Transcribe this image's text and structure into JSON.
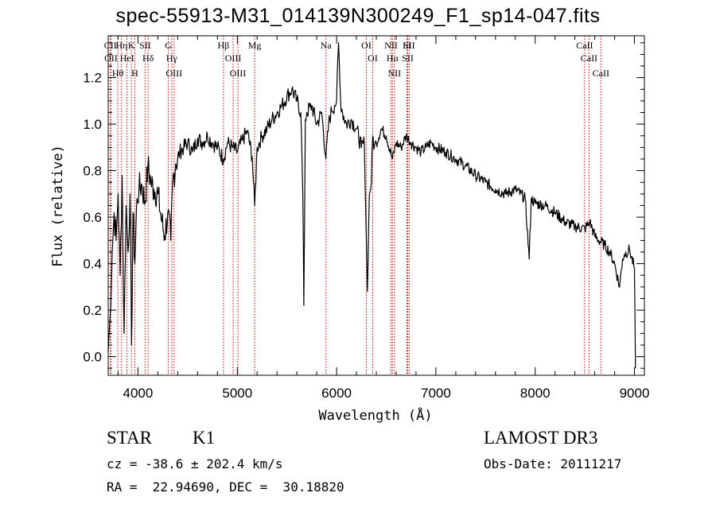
{
  "title": "spec-55913-M31_014139N300249_F1_sp14-047.fits",
  "info": {
    "class": "STAR",
    "subclass": "K1",
    "survey": "LAMOST DR3",
    "cz": "cz = -38.6 ± 202.4 km/s",
    "obs_date": "Obs-Date: 20111217",
    "coords": "RA =  22.94690, DEC =  30.18820"
  },
  "colors": {
    "spectrum": "#000000",
    "lines": "#c00000",
    "axes": "#000000"
  },
  "chart_data": {
    "type": "line",
    "xlabel": "Wavelength (Å)",
    "ylabel": "Flux (relative)",
    "xlim": [
      3700,
      9100
    ],
    "ylim": [
      -0.08,
      1.38
    ],
    "x_ticks": [
      4000,
      5000,
      6000,
      7000,
      8000,
      9000
    ],
    "x_tick_labels": [
      "4000",
      "5000",
      "6000",
      "7000",
      "8000",
      "9000"
    ],
    "y_ticks": [
      0.0,
      0.2,
      0.4,
      0.6,
      0.8,
      1.0,
      1.2
    ],
    "y_tick_labels": [
      "0.0",
      "0.2",
      "0.4",
      "0.6",
      "0.8",
      "1.0",
      "1.2"
    ],
    "spectrum": {
      "x": [
        3700,
        3720,
        3740,
        3760,
        3780,
        3800,
        3820,
        3840,
        3860,
        3880,
        3900,
        3920,
        3935,
        3950,
        3968,
        3990,
        4010,
        4040,
        4070,
        4100,
        4130,
        4160,
        4200,
        4240,
        4270,
        4300,
        4330,
        4350,
        4380,
        4420,
        4460,
        4500,
        4550,
        4600,
        4650,
        4700,
        4750,
        4800,
        4861,
        4900,
        4950,
        5000,
        5050,
        5100,
        5150,
        5175,
        5200,
        5250,
        5300,
        5350,
        5400,
        5450,
        5500,
        5550,
        5600,
        5640,
        5660,
        5670,
        5678,
        5685,
        5700,
        5750,
        5800,
        5850,
        5893,
        5920,
        5950,
        5980,
        6000,
        6020,
        6040,
        6060,
        6100,
        6150,
        6200,
        6250,
        6280,
        6300,
        6310,
        6330,
        6350,
        6364,
        6380,
        6400,
        6450,
        6500,
        6563,
        6600,
        6650,
        6700,
        6750,
        6800,
        6850,
        6900,
        6950,
        7000,
        7100,
        7200,
        7300,
        7400,
        7500,
        7600,
        7700,
        7800,
        7900,
        7940,
        7960,
        8000,
        8100,
        8200,
        8300,
        8400,
        8500,
        8550,
        8600,
        8640,
        8700,
        8750,
        8800,
        8850,
        8880,
        8900,
        8950,
        9000,
        9010
      ],
      "y": [
        0.02,
        0.18,
        0.45,
        0.62,
        0.5,
        0.7,
        0.35,
        0.78,
        0.1,
        0.65,
        0.45,
        0.7,
        0.05,
        0.62,
        0.4,
        0.68,
        0.72,
        0.74,
        0.66,
        0.82,
        0.75,
        0.72,
        0.7,
        0.58,
        0.52,
        0.62,
        0.5,
        0.75,
        0.83,
        0.88,
        0.9,
        0.92,
        0.88,
        0.94,
        0.92,
        0.95,
        0.92,
        0.9,
        0.85,
        0.92,
        0.9,
        0.88,
        0.93,
        0.97,
        0.86,
        0.65,
        0.9,
        0.95,
        0.98,
        1.02,
        1.05,
        1.08,
        1.12,
        1.15,
        1.1,
        1.05,
        0.7,
        0.22,
        0.6,
        1.02,
        1.05,
        1.08,
        1.0,
        1.05,
        0.85,
        1.0,
        1.06,
        1.08,
        1.1,
        1.35,
        1.1,
        1.05,
        1.0,
        1.02,
        0.98,
        0.9,
        0.92,
        0.5,
        0.28,
        0.7,
        0.75,
        0.95,
        0.9,
        0.92,
        0.98,
        0.95,
        0.85,
        0.92,
        0.9,
        0.95,
        0.92,
        0.9,
        0.88,
        0.9,
        0.92,
        0.9,
        0.88,
        0.85,
        0.82,
        0.78,
        0.75,
        0.72,
        0.7,
        0.72,
        0.68,
        0.42,
        0.68,
        0.66,
        0.65,
        0.62,
        0.58,
        0.56,
        0.55,
        0.58,
        0.52,
        0.5,
        0.48,
        0.45,
        0.4,
        0.3,
        0.42,
        0.44,
        0.46,
        0.38,
        -0.05
      ]
    },
    "spectral_lines": [
      {
        "name": "Hθ",
        "x": 3797
      },
      {
        "name": "CII",
        "x": 3722
      },
      {
        "name": "OII",
        "x": 3727
      },
      {
        "name": "Hη",
        "x": 3835
      },
      {
        "name": "HeI",
        "x": 3889
      },
      {
        "name": "K",
        "x": 3934
      },
      {
        "name": "H",
        "x": 3968
      },
      {
        "name": "Hδ",
        "x": 4102
      },
      {
        "name": "SII",
        "x": 4072
      },
      {
        "name": "OIII",
        "x": 4363
      },
      {
        "name": "Hγ",
        "x": 4340
      },
      {
        "name": "G",
        "x": 4305
      },
      {
        "name": "OIII",
        "x": 5007
      },
      {
        "name": "OIII",
        "x": 4959
      },
      {
        "name": "Hβ",
        "x": 4861
      },
      {
        "name": "Mg",
        "x": 5175
      },
      {
        "name": "Na",
        "x": 5893
      },
      {
        "name": "OI",
        "x": 6300
      },
      {
        "name": "OI",
        "x": 6364
      },
      {
        "name": "Hα",
        "x": 6563
      },
      {
        "name": "NII",
        "x": 6548
      },
      {
        "name": "NII",
        "x": 6583
      },
      {
        "name": "SII",
        "x": 6717
      },
      {
        "name": "Li",
        "x": 6708
      },
      {
        "name": "SII",
        "x": 6731
      },
      {
        "name": "CaII",
        "x": 8542
      },
      {
        "name": "CaII",
        "x": 8498
      },
      {
        "name": "CaII",
        "x": 8662
      }
    ]
  }
}
